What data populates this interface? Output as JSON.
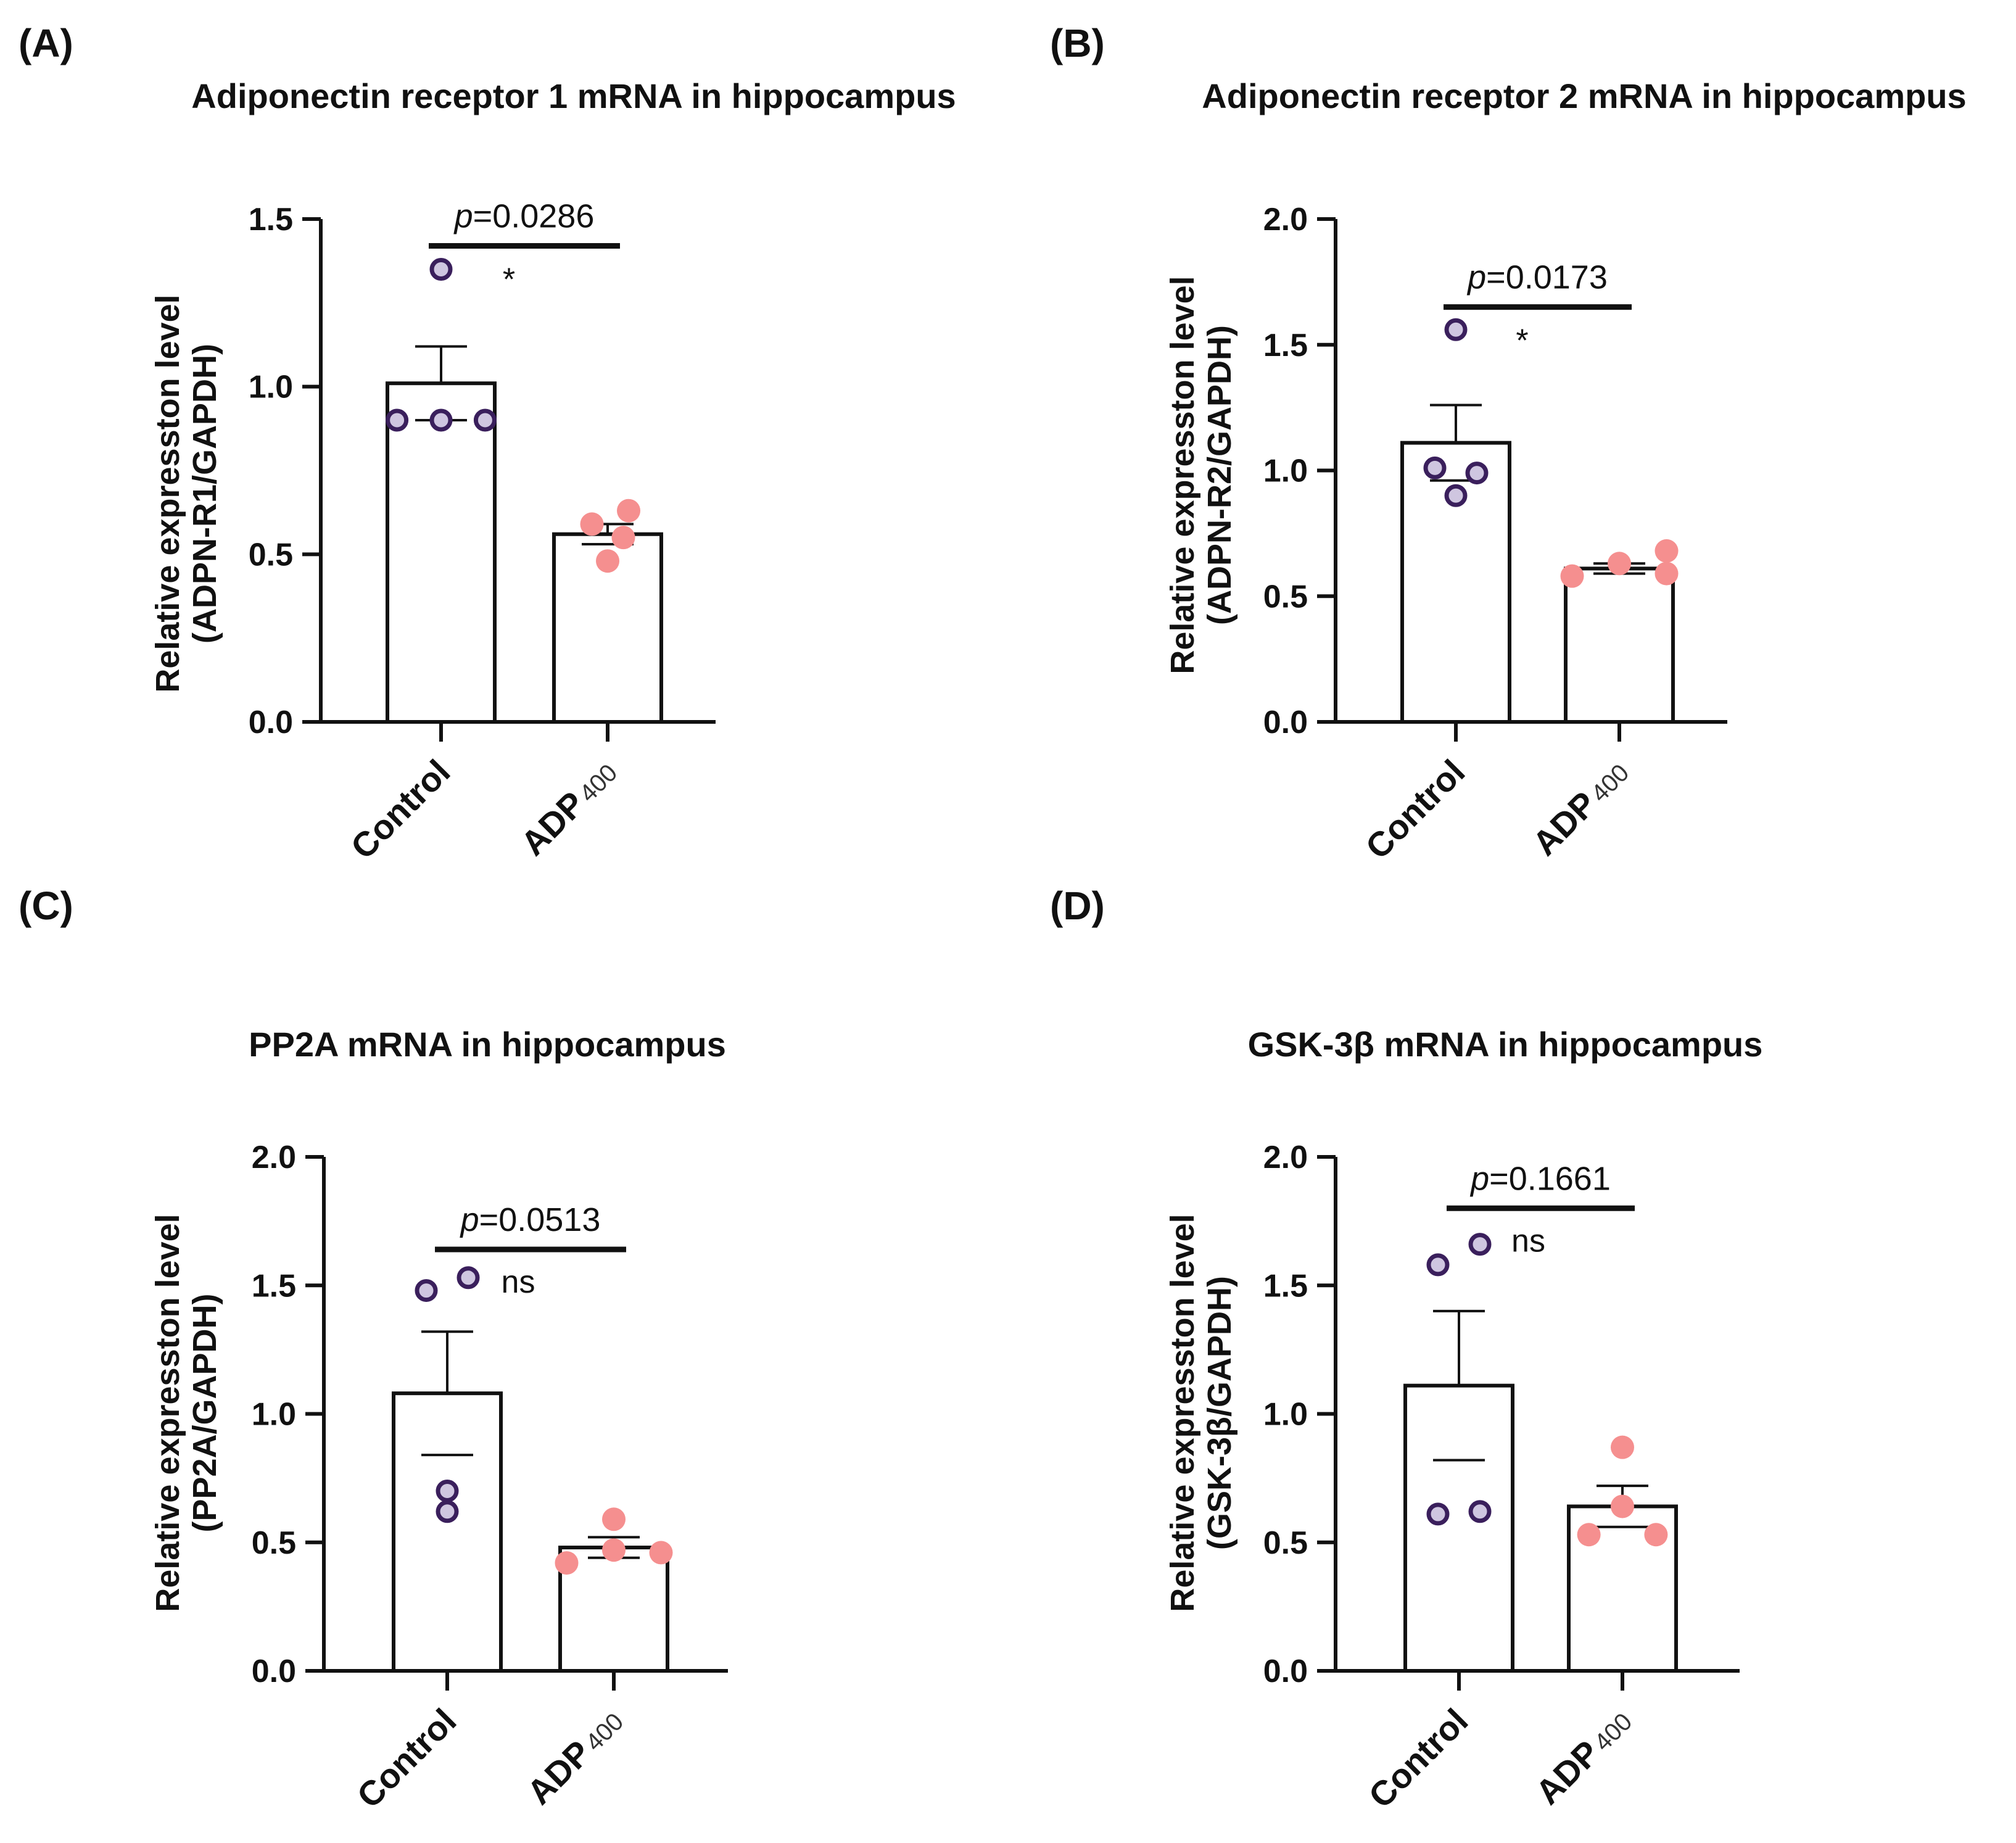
{
  "figure": {
    "panels": [
      "(A)",
      "(B)",
      "(C)",
      "(D)"
    ]
  },
  "chart_data": [
    {
      "type": "bar",
      "panel": "(A)",
      "title": "Adiponectin receptor 1 mRNA in hippocampus",
      "ylabel_line1": "Relative expresston level",
      "ylabel_line2": "(ADPN-R1/GAPDH)",
      "ylim": [
        0,
        1.5
      ],
      "yticks": [
        0,
        0.5,
        1.0,
        1.5
      ],
      "ytick_labels": [
        "0.0",
        "0.5",
        "1.0",
        "1.5"
      ],
      "categories": [
        {
          "main": "Control",
          "sub": ""
        },
        {
          "main": "ADP",
          "sub": "400"
        }
      ],
      "means": [
        1.01,
        0.56
      ],
      "sem": [
        0.11,
        0.03
      ],
      "points": [
        [
          0.9,
          0.9,
          0.9,
          1.35
        ],
        [
          0.48,
          0.55,
          0.59,
          0.63
        ]
      ],
      "point_offsets": [
        [
          -0.42,
          0.0,
          0.42,
          0.0
        ],
        [
          0.0,
          0.15,
          -0.15,
          0.2
        ]
      ],
      "colors": [
        "#3a1f5c",
        "#f58f8f"
      ],
      "comparison": {
        "p_prefix": "p",
        "p_value": "=0.0286",
        "label": "*",
        "y": 1.42
      }
    },
    {
      "type": "bar",
      "panel": "(B)",
      "title": "Adiponectin receptor 2 mRNA in hippocampus",
      "ylabel_line1": "Relative expresston level",
      "ylabel_line2": "(ADPN-R2/GAPDH)",
      "ylim": [
        0,
        2.0
      ],
      "yticks": [
        0,
        0.5,
        1.0,
        1.5,
        2.0
      ],
      "ytick_labels": [
        "0.0",
        "0.5",
        "1.0",
        "1.5",
        "2.0"
      ],
      "categories": [
        {
          "main": "Control",
          "sub": ""
        },
        {
          "main": "ADP",
          "sub": "400"
        }
      ],
      "means": [
        1.11,
        0.61
      ],
      "sem": [
        0.15,
        0.02
      ],
      "points": [
        [
          1.56,
          1.01,
          0.99,
          0.9
        ],
        [
          0.58,
          0.63,
          0.59,
          0.68
        ]
      ],
      "point_offsets": [
        [
          0.0,
          -0.2,
          0.2,
          0.0
        ],
        [
          -0.45,
          0.0,
          0.45,
          0.45
        ]
      ],
      "colors": [
        "#3a1f5c",
        "#f58f8f"
      ],
      "comparison": {
        "p_prefix": "p",
        "p_value": "=0.0173",
        "label": "*",
        "y": 1.65
      }
    },
    {
      "type": "bar",
      "panel": "(C)",
      "title": "PP2A mRNA in hippocampus",
      "ylabel_line1": "Relative expresston level",
      "ylabel_line2": "(PP2A/GAPDH)",
      "ylim": [
        0,
        2.0
      ],
      "yticks": [
        0,
        0.5,
        1.0,
        1.5,
        2.0
      ],
      "ytick_labels": [
        "0.0",
        "0.5",
        "1.0",
        "1.5",
        "2.0"
      ],
      "categories": [
        {
          "main": "Control",
          "sub": ""
        },
        {
          "main": "ADP",
          "sub": "400"
        }
      ],
      "means": [
        1.08,
        0.48
      ],
      "sem": [
        0.24,
        0.04
      ],
      "points": [
        [
          1.48,
          1.53,
          0.7,
          0.62
        ],
        [
          0.42,
          0.47,
          0.59,
          0.46
        ]
      ],
      "point_offsets": [
        [
          -0.2,
          0.2,
          0.0,
          0.0
        ],
        [
          -0.45,
          0.0,
          0.0,
          0.45
        ]
      ],
      "colors": [
        "#3a1f5c",
        "#f58f8f"
      ],
      "comparison": {
        "p_prefix": "p",
        "p_value": "=0.0513",
        "label": "ns",
        "y": 1.64
      }
    },
    {
      "type": "bar",
      "panel": "(D)",
      "title": "GSK-3β mRNA in hippocampus",
      "ylabel_line1": "Relative expresston level",
      "ylabel_line2": "(GSK-3β/GAPDH)",
      "ylim": [
        0,
        2.0
      ],
      "yticks": [
        0,
        0.5,
        1.0,
        1.5,
        2.0
      ],
      "ytick_labels": [
        "0.0",
        "0.5",
        "1.0",
        "1.5",
        "2.0"
      ],
      "categories": [
        {
          "main": "Control",
          "sub": ""
        },
        {
          "main": "ADP",
          "sub": "400"
        }
      ],
      "means": [
        1.11,
        0.64
      ],
      "sem": [
        0.29,
        0.08
      ],
      "points": [
        [
          1.58,
          1.66,
          0.61,
          0.62
        ],
        [
          0.87,
          0.64,
          0.53,
          0.53
        ]
      ],
      "point_offsets": [
        [
          -0.2,
          0.2,
          -0.2,
          0.2
        ],
        [
          0.0,
          0.0,
          -0.32,
          0.32
        ]
      ],
      "colors": [
        "#3a1f5c",
        "#f58f8f"
      ],
      "comparison": {
        "p_prefix": "p",
        "p_value": "=0.1661",
        "label": "ns",
        "y": 1.8
      }
    }
  ]
}
